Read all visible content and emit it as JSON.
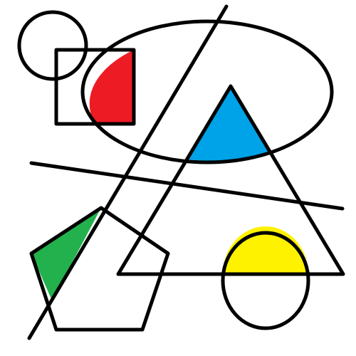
{
  "figure": {
    "background": "#ffffff",
    "stroke_color": "#000000",
    "fill_colors": {
      "red": "#ed1c24",
      "blue": "#00a2e8",
      "green": "#22b14c",
      "yellow": "#fff200"
    },
    "shapes": [
      "circle",
      "square",
      "ellipse",
      "triangle",
      "pentagon",
      "circle",
      "line",
      "line"
    ]
  }
}
